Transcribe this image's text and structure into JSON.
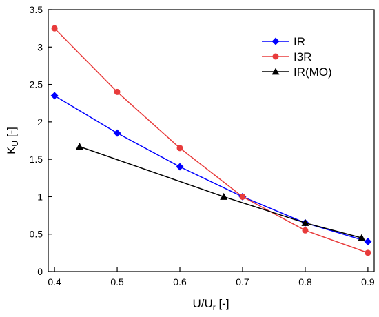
{
  "chart_data": {
    "type": "line",
    "title": "",
    "xlabel": {
      "main": "U/U",
      "sub": "r",
      "suffix": " [-]"
    },
    "ylabel": {
      "main": "K",
      "sub": "U",
      "suffix": " [-]"
    },
    "xlim": [
      0.39,
      0.91
    ],
    "ylim": [
      0,
      3.5
    ],
    "xticks": [
      0.4,
      0.5,
      0.6,
      0.7,
      0.8,
      0.9
    ],
    "xtick_labels": [
      "0.4",
      "0.5",
      "0.6",
      "0.7",
      "0.8",
      "0.9"
    ],
    "yticks": [
      0,
      0.5,
      1,
      1.5,
      2,
      2.5,
      3,
      3.5
    ],
    "ytick_labels": [
      "0",
      "0.5",
      "1",
      "1.5",
      "2",
      "2.5",
      "3",
      "3.5"
    ],
    "grid": false,
    "legend_position": "top-right",
    "series": [
      {
        "name": "IR",
        "color": "#0000ff",
        "marker": "diamond",
        "x": [
          0.4,
          0.5,
          0.6,
          0.7,
          0.8,
          0.9
        ],
        "y": [
          2.35,
          1.85,
          1.4,
          1.0,
          0.65,
          0.4
        ]
      },
      {
        "name": "I3R",
        "color": "#e83b3b",
        "marker": "circle",
        "x": [
          0.4,
          0.5,
          0.6,
          0.7,
          0.8,
          0.9
        ],
        "y": [
          3.25,
          2.4,
          1.65,
          1.0,
          0.55,
          0.25
        ]
      },
      {
        "name": "IR(MO)",
        "color": "#000000",
        "marker": "triangle",
        "x": [
          0.44,
          0.67,
          0.8,
          0.89
        ],
        "y": [
          1.67,
          1.0,
          0.65,
          0.45
        ]
      }
    ]
  }
}
